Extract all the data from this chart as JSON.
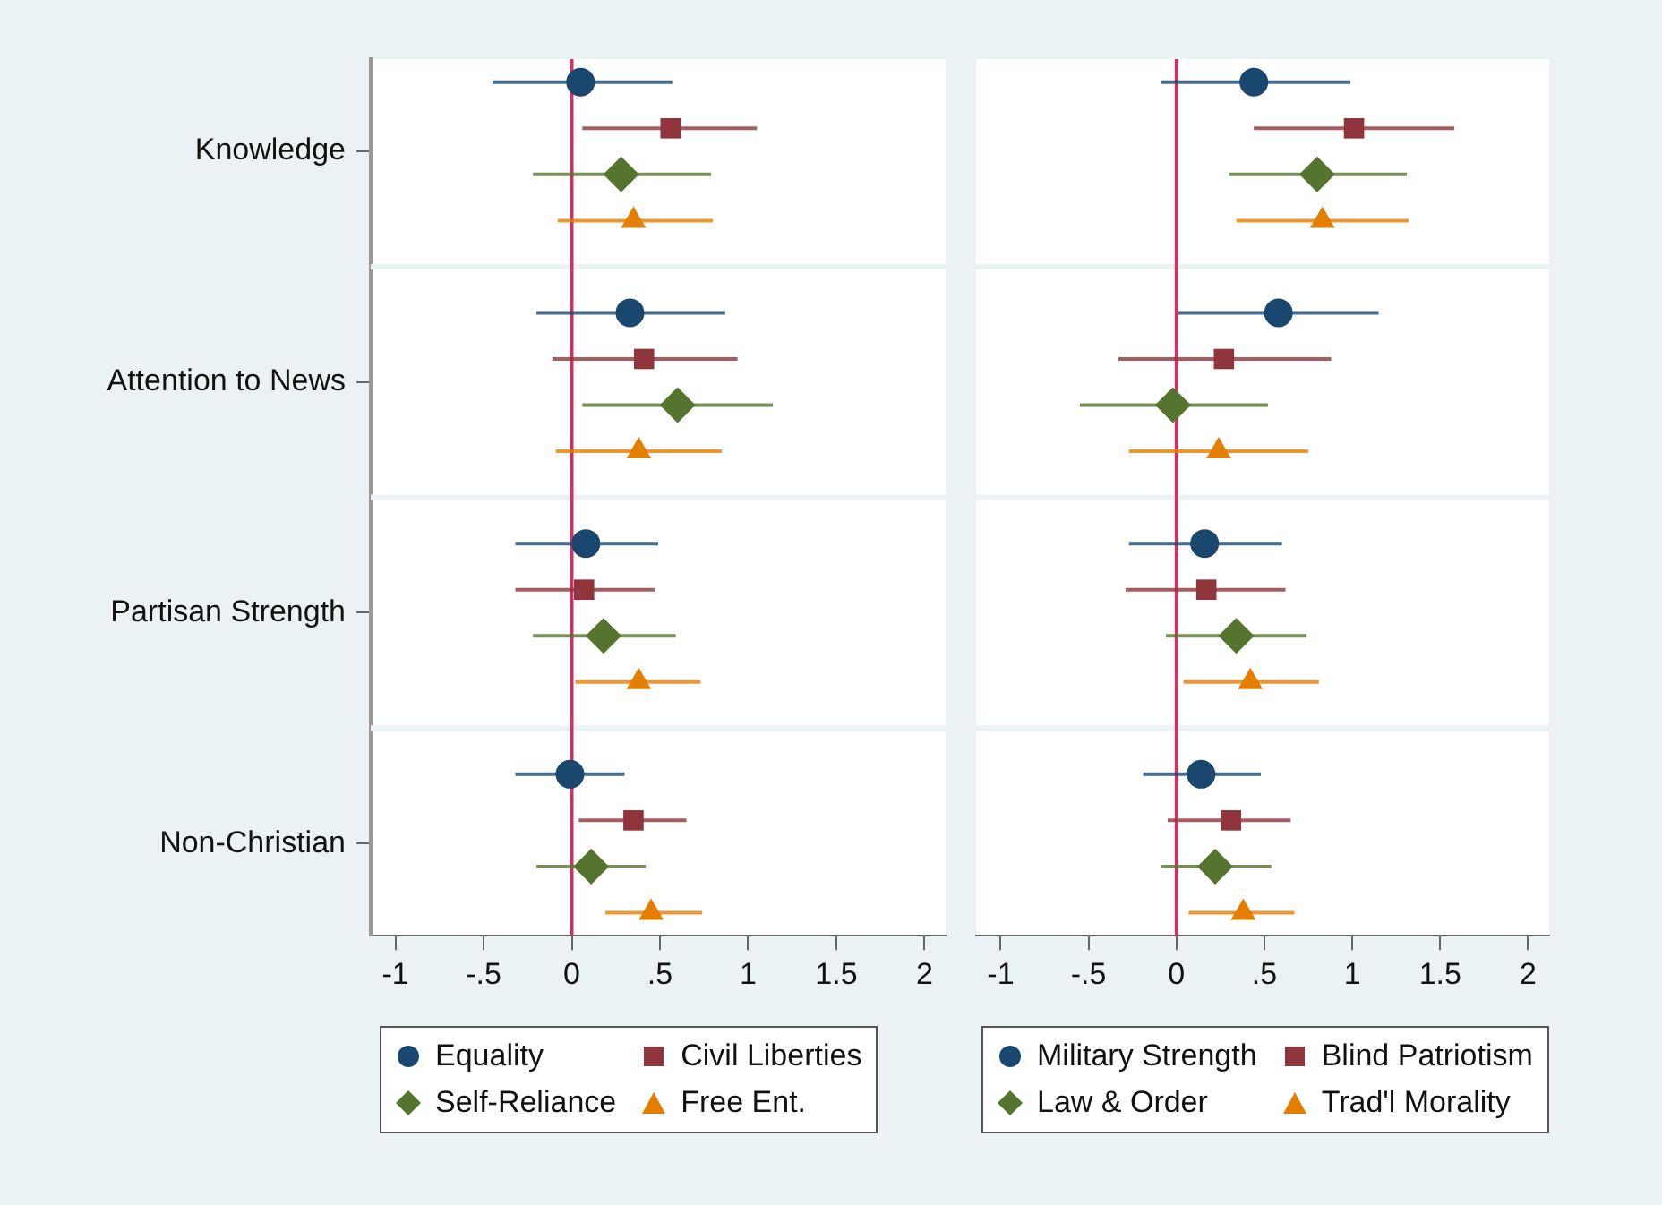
{
  "chart_data": [
    {
      "type": "scatter",
      "orientation": "horizontal",
      "categories": [
        "Knowledge",
        "Attention to News",
        "Partisan Strength",
        "Non-Christian"
      ],
      "series": [
        {
          "name": "Equality",
          "color": "#1a476f",
          "marker": "circle",
          "values": [
            0.05,
            0.33,
            0.08,
            -0.01
          ],
          "errors": [
            [
              -0.45,
              0.57
            ],
            [
              -0.2,
              0.87
            ],
            [
              -0.32,
              0.49
            ],
            [
              -0.32,
              0.3
            ]
          ]
        },
        {
          "name": "Civil Liberties",
          "color": "#90353b",
          "marker": "square",
          "values": [
            0.56,
            0.41,
            0.07,
            0.35
          ],
          "errors": [
            [
              0.06,
              1.05
            ],
            [
              -0.11,
              0.94
            ],
            [
              -0.32,
              0.47
            ],
            [
              0.04,
              0.65
            ]
          ]
        },
        {
          "name": "Self-Reliance",
          "color": "#55752f",
          "marker": "diamond",
          "values": [
            0.28,
            0.6,
            0.18,
            0.11
          ],
          "errors": [
            [
              -0.22,
              0.79
            ],
            [
              0.06,
              1.14
            ],
            [
              -0.22,
              0.59
            ],
            [
              -0.2,
              0.42
            ]
          ]
        },
        {
          "name": "Free Ent.",
          "color": "#e37e00",
          "marker": "triangle",
          "values": [
            0.35,
            0.38,
            0.38,
            0.45
          ],
          "errors": [
            [
              -0.08,
              0.8
            ],
            [
              -0.09,
              0.85
            ],
            [
              0.02,
              0.73
            ],
            [
              0.19,
              0.74
            ]
          ]
        }
      ],
      "xlim": [
        -1.14,
        2.12
      ],
      "xticks": [
        -1,
        {
          "value": -0.5,
          "label": "-.5"
        },
        0,
        {
          "value": 0.5,
          "label": ".5"
        },
        1,
        {
          "value": 1.5,
          "label": "1.5"
        },
        2
      ],
      "ref_lines": [
        {
          "axis": "x",
          "value": 0,
          "color": "#cc3366"
        }
      ],
      "grid": "y",
      "legend": "bottom"
    },
    {
      "type": "scatter",
      "orientation": "horizontal",
      "categories": [
        null,
        null,
        null,
        null
      ],
      "series": [
        {
          "name": "Military Strength",
          "color": "#1a476f",
          "marker": "circle",
          "values": [
            0.44,
            0.58,
            0.16,
            0.14
          ],
          "errors": [
            [
              -0.09,
              0.99
            ],
            [
              0.01,
              1.15
            ],
            [
              -0.27,
              0.6
            ],
            [
              -0.19,
              0.48
            ]
          ]
        },
        {
          "name": "Blind Patriotism",
          "color": "#90353b",
          "marker": "square",
          "values": [
            1.01,
            0.27,
            0.17,
            0.31
          ],
          "errors": [
            [
              0.44,
              1.58
            ],
            [
              -0.33,
              0.88
            ],
            [
              -0.29,
              0.62
            ],
            [
              -0.05,
              0.65
            ]
          ]
        },
        {
          "name": "Law & Order",
          "color": "#55752f",
          "marker": "diamond",
          "values": [
            0.8,
            -0.02,
            0.34,
            0.22
          ],
          "errors": [
            [
              0.3,
              1.31
            ],
            [
              -0.55,
              0.52
            ],
            [
              -0.06,
              0.74
            ],
            [
              -0.09,
              0.54
            ]
          ]
        },
        {
          "name": "Trad'l Morality",
          "color": "#e37e00",
          "marker": "triangle",
          "values": [
            0.83,
            0.24,
            0.42,
            0.38
          ],
          "errors": [
            [
              0.34,
              1.32
            ],
            [
              -0.27,
              0.75
            ],
            [
              0.04,
              0.81
            ],
            [
              0.07,
              0.67
            ]
          ]
        }
      ],
      "xlim": [
        -1.14,
        2.12
      ],
      "xticks": [
        -1,
        {
          "value": -0.5,
          "label": "-.5"
        },
        0,
        {
          "value": 0.5,
          "label": ".5"
        },
        1,
        {
          "value": 1.5,
          "label": "1.5"
        },
        2
      ],
      "ref_lines": [
        {
          "axis": "x",
          "value": 0,
          "color": "#cc3366"
        }
      ],
      "grid": "y",
      "legend": "bottom",
      "tick_labels": "x"
    }
  ]
}
